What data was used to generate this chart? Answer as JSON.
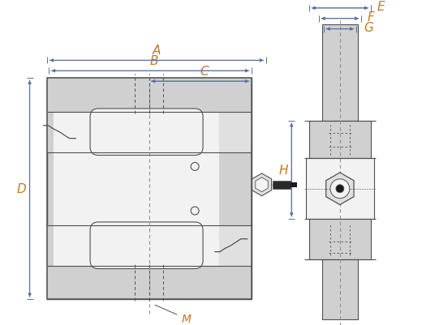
{
  "bg_color": "#ffffff",
  "lc": "#505050",
  "orange": "#c87820",
  "blue": "#5570a0",
  "gray_fill": "#d0d0d0",
  "gray_mid": "#e0e0e0",
  "white_fill": "#f2f2f2",
  "dashed": "#909090",
  "labels": [
    "A",
    "B",
    "C",
    "D",
    "E",
    "F",
    "G",
    "H",
    "M"
  ]
}
